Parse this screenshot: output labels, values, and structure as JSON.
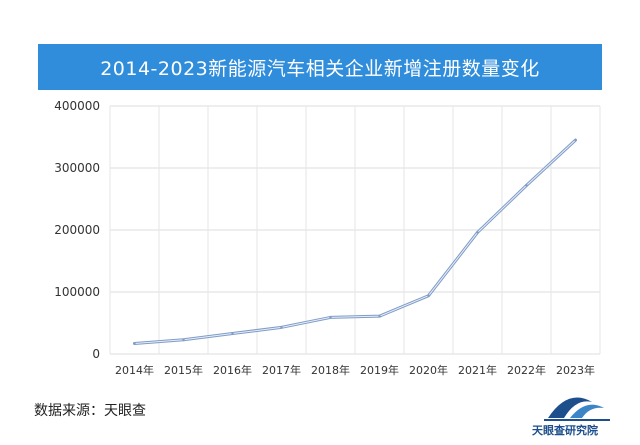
{
  "title": "2014-2023新能源汽车相关企业新增注册数量变化",
  "source_label": "数据来源：天眼查",
  "logo_text": "天眼查研究院",
  "chart_data": {
    "type": "line",
    "title": "2014-2023新能源汽车相关企业新增注册数量变化",
    "xlabel": "",
    "ylabel": "",
    "categories": [
      "2014年",
      "2015年",
      "2016年",
      "2017年",
      "2018年",
      "2019年",
      "2020年",
      "2021年",
      "2022年",
      "2023年"
    ],
    "series": [
      {
        "values": [
          17000,
          23000,
          33000,
          43000,
          59000,
          61000,
          94000,
          196000,
          272000,
          345000
        ],
        "color": "#7f9cc8"
      }
    ],
    "ylim": [
      0,
      400000
    ],
    "yticks": [
      "0",
      "100000",
      "200000",
      "300000",
      "400000"
    ],
    "grid": true,
    "legend": "none"
  }
}
